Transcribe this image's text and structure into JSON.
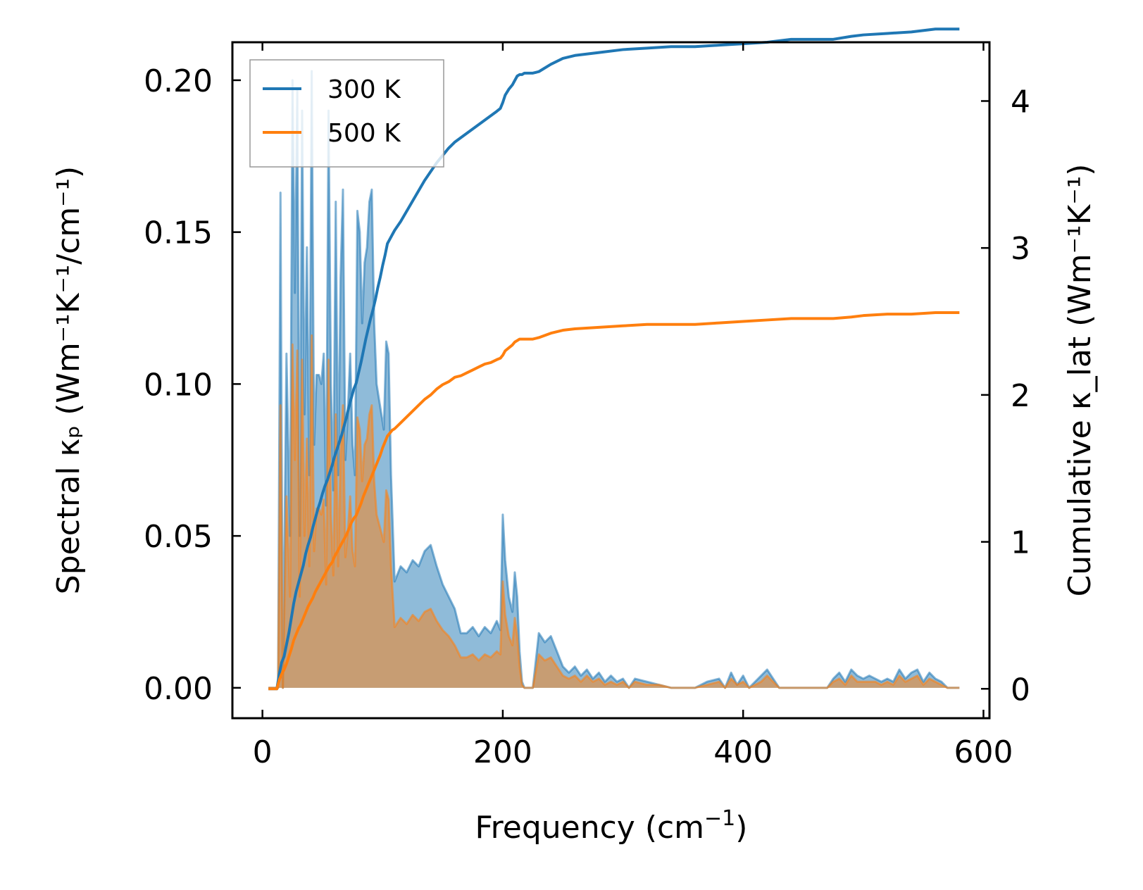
{
  "chart_data": {
    "type": "line",
    "xlabel_main": "Frequency (cm",
    "xlabel_sup": "−1",
    "xlabel_close": ")",
    "xlim": [
      -25,
      605
    ],
    "xticks": [
      0,
      200,
      400,
      600
    ],
    "xtick_labels": [
      "0",
      "200",
      "400",
      "600"
    ],
    "left_axis": {
      "label": "Spectral κₚ (Wm⁻¹K⁻¹/cm⁻¹)",
      "ylim": [
        -0.01,
        0.2125
      ],
      "ticks": [
        0.0,
        0.05,
        0.1,
        0.15,
        0.2
      ],
      "tick_labels": [
        "0.00",
        "0.05",
        "0.10",
        "0.15",
        "0.20"
      ]
    },
    "right_axis": {
      "label": "Cumulative κ_lat (Wm⁻¹K⁻¹)",
      "ylim": [
        -0.2,
        4.4
      ],
      "ticks": [
        0,
        1,
        2,
        3,
        4
      ],
      "tick_labels": [
        "0",
        "1",
        "2",
        "3",
        "4"
      ]
    },
    "series": [
      {
        "name": "300 K",
        "color": "#1f77b4",
        "spectral_x": [
          5,
          10,
          13,
          15,
          17,
          20,
          23,
          25,
          27,
          29,
          31,
          33,
          35,
          37,
          39,
          41,
          43,
          45,
          47,
          49,
          51,
          53,
          55,
          57,
          59,
          61,
          63,
          65,
          67,
          69,
          71,
          73,
          75,
          77,
          79,
          81,
          83,
          85,
          87,
          89,
          91,
          93,
          95,
          97,
          99,
          101,
          103,
          105,
          107,
          110,
          115,
          120,
          125,
          130,
          135,
          140,
          145,
          150,
          155,
          160,
          165,
          170,
          175,
          180,
          185,
          190,
          195,
          198,
          200,
          202,
          205,
          208,
          210,
          212,
          214,
          216,
          218,
          220,
          225,
          230,
          235,
          240,
          245,
          250,
          255,
          260,
          265,
          270,
          275,
          280,
          285,
          290,
          295,
          300,
          305,
          310,
          320,
          330,
          340,
          350,
          360,
          370,
          380,
          385,
          390,
          395,
          400,
          405,
          410,
          415,
          420,
          425,
          430,
          440,
          450,
          460,
          470,
          475,
          480,
          485,
          490,
          495,
          500,
          505,
          510,
          515,
          520,
          525,
          530,
          535,
          540,
          545,
          550,
          555,
          560,
          565,
          570,
          575,
          580
        ],
        "spectral_y": [
          0.0,
          0.0,
          0.0,
          0.163,
          0.0,
          0.11,
          0.05,
          0.2,
          0.13,
          0.197,
          0.05,
          0.19,
          0.09,
          0.145,
          0.07,
          0.203,
          0.08,
          0.103,
          0.103,
          0.1,
          0.11,
          0.06,
          0.19,
          0.1,
          0.065,
          0.16,
          0.07,
          0.135,
          0.164,
          0.075,
          0.09,
          0.11,
          0.08,
          0.07,
          0.157,
          0.15,
          0.12,
          0.14,
          0.145,
          0.16,
          0.164,
          0.12,
          0.1,
          0.095,
          0.09,
          0.085,
          0.114,
          0.11,
          0.07,
          0.035,
          0.04,
          0.038,
          0.042,
          0.04,
          0.045,
          0.047,
          0.04,
          0.034,
          0.03,
          0.026,
          0.018,
          0.018,
          0.02,
          0.017,
          0.02,
          0.018,
          0.022,
          0.019,
          0.057,
          0.042,
          0.03,
          0.025,
          0.038,
          0.03,
          0.012,
          0.002,
          0.0,
          0.0,
          0.0,
          0.018,
          0.015,
          0.017,
          0.012,
          0.007,
          0.005,
          0.007,
          0.004,
          0.006,
          0.003,
          0.005,
          0.002,
          0.004,
          0.002,
          0.003,
          0.0,
          0.003,
          0.002,
          0.001,
          0.0,
          0.0,
          0.0,
          0.002,
          0.003,
          0.0,
          0.005,
          0.001,
          0.004,
          0.0,
          0.002,
          0.004,
          0.006,
          0.003,
          0.0,
          0.0,
          0.0,
          0.0,
          0.0,
          0.003,
          0.005,
          0.002,
          0.006,
          0.004,
          0.003,
          0.004,
          0.003,
          0.002,
          0.003,
          0.002,
          0.006,
          0.003,
          0.005,
          0.006,
          0.002,
          0.005,
          0.003,
          0.002,
          0.0,
          0.0,
          0.0
        ],
        "cumulative_x": [
          5,
          12,
          14,
          16,
          18,
          20,
          22,
          24,
          26,
          28,
          30,
          32,
          34,
          36,
          38,
          40,
          42,
          44,
          46,
          48,
          50,
          52,
          54,
          56,
          58,
          60,
          62,
          64,
          66,
          68,
          70,
          72,
          74,
          76,
          78,
          80,
          82,
          84,
          86,
          88,
          90,
          92,
          94,
          96,
          98,
          100,
          102,
          104,
          106,
          108,
          110,
          115,
          120,
          125,
          130,
          135,
          140,
          145,
          150,
          155,
          160,
          165,
          170,
          175,
          180,
          185,
          190,
          195,
          198,
          200,
          202,
          205,
          208,
          210,
          212,
          214,
          216,
          218,
          220,
          225,
          230,
          240,
          250,
          260,
          280,
          300,
          320,
          340,
          360,
          380,
          400,
          420,
          440,
          460,
          475,
          490,
          500,
          520,
          540,
          560,
          580
        ],
        "cumulative_y": [
          0.0,
          0.0,
          0.1,
          0.18,
          0.22,
          0.3,
          0.38,
          0.48,
          0.58,
          0.66,
          0.72,
          0.78,
          0.84,
          0.92,
          0.98,
          1.03,
          1.1,
          1.16,
          1.22,
          1.27,
          1.33,
          1.38,
          1.42,
          1.47,
          1.52,
          1.58,
          1.63,
          1.68,
          1.73,
          1.79,
          1.85,
          1.92,
          1.98,
          2.04,
          2.08,
          2.15,
          2.22,
          2.3,
          2.38,
          2.45,
          2.52,
          2.58,
          2.65,
          2.73,
          2.8,
          2.88,
          2.95,
          3.03,
          3.06,
          3.09,
          3.12,
          3.18,
          3.25,
          3.32,
          3.39,
          3.46,
          3.52,
          3.58,
          3.63,
          3.68,
          3.72,
          3.75,
          3.78,
          3.81,
          3.84,
          3.87,
          3.9,
          3.93,
          3.95,
          3.99,
          4.04,
          4.08,
          4.11,
          4.14,
          4.17,
          4.18,
          4.18,
          4.19,
          4.19,
          4.19,
          4.2,
          4.25,
          4.29,
          4.31,
          4.33,
          4.35,
          4.36,
          4.37,
          4.37,
          4.38,
          4.39,
          4.4,
          4.42,
          4.42,
          4.42,
          4.44,
          4.45,
          4.46,
          4.47,
          4.49,
          4.49
        ]
      },
      {
        "name": "500 K",
        "color": "#ff7f0e",
        "spectral_x": [
          5,
          10,
          13,
          15,
          17,
          20,
          23,
          25,
          27,
          29,
          31,
          33,
          35,
          37,
          39,
          41,
          43,
          45,
          47,
          49,
          51,
          53,
          55,
          57,
          59,
          61,
          63,
          65,
          67,
          69,
          71,
          73,
          75,
          77,
          79,
          81,
          83,
          85,
          87,
          89,
          91,
          93,
          95,
          97,
          99,
          101,
          103,
          105,
          107,
          110,
          115,
          120,
          125,
          130,
          135,
          140,
          145,
          150,
          155,
          160,
          165,
          170,
          175,
          180,
          185,
          190,
          195,
          198,
          200,
          202,
          205,
          208,
          210,
          212,
          214,
          216,
          218,
          220,
          225,
          230,
          235,
          240,
          245,
          250,
          255,
          260,
          265,
          270,
          275,
          280,
          285,
          290,
          295,
          300,
          305,
          310,
          320,
          330,
          340,
          350,
          360,
          370,
          380,
          385,
          390,
          395,
          400,
          405,
          410,
          415,
          420,
          425,
          430,
          440,
          450,
          460,
          470,
          475,
          480,
          485,
          490,
          495,
          500,
          505,
          510,
          515,
          520,
          525,
          530,
          535,
          540,
          545,
          550,
          555,
          560,
          565,
          570,
          575,
          580
        ],
        "spectral_y": [
          0.0,
          0.0,
          0.0,
          0.093,
          0.0,
          0.063,
          0.03,
          0.113,
          0.075,
          0.111,
          0.03,
          0.108,
          0.05,
          0.082,
          0.04,
          0.116,
          0.045,
          0.059,
          0.059,
          0.057,
          0.062,
          0.034,
          0.108,
          0.057,
          0.037,
          0.09,
          0.04,
          0.077,
          0.093,
          0.043,
          0.051,
          0.063,
          0.045,
          0.04,
          0.089,
          0.085,
          0.068,
          0.08,
          0.082,
          0.09,
          0.093,
          0.068,
          0.057,
          0.054,
          0.051,
          0.048,
          0.065,
          0.062,
          0.04,
          0.02,
          0.023,
          0.021,
          0.024,
          0.022,
          0.025,
          0.026,
          0.022,
          0.019,
          0.017,
          0.014,
          0.01,
          0.01,
          0.011,
          0.009,
          0.011,
          0.01,
          0.012,
          0.011,
          0.035,
          0.024,
          0.017,
          0.014,
          0.023,
          0.017,
          0.007,
          0.001,
          0.0,
          0.0,
          0.0,
          0.011,
          0.009,
          0.01,
          0.007,
          0.004,
          0.003,
          0.004,
          0.002,
          0.004,
          0.002,
          0.003,
          0.001,
          0.002,
          0.001,
          0.002,
          0.0,
          0.002,
          0.001,
          0.001,
          0.0,
          0.0,
          0.0,
          0.001,
          0.002,
          0.0,
          0.003,
          0.001,
          0.002,
          0.0,
          0.001,
          0.002,
          0.004,
          0.002,
          0.0,
          0.0,
          0.0,
          0.0,
          0.0,
          0.002,
          0.003,
          0.001,
          0.004,
          0.002,
          0.002,
          0.002,
          0.002,
          0.001,
          0.002,
          0.001,
          0.004,
          0.002,
          0.003,
          0.004,
          0.001,
          0.003,
          0.002,
          0.001,
          0.0,
          0.0,
          0.0
        ],
        "cumulative_x": [
          5,
          12,
          14,
          16,
          18,
          20,
          22,
          24,
          26,
          28,
          30,
          32,
          34,
          36,
          38,
          40,
          42,
          44,
          46,
          48,
          50,
          52,
          54,
          56,
          58,
          60,
          62,
          64,
          66,
          68,
          70,
          72,
          74,
          76,
          78,
          80,
          82,
          84,
          86,
          88,
          90,
          92,
          94,
          96,
          98,
          100,
          102,
          104,
          106,
          108,
          110,
          115,
          120,
          125,
          130,
          135,
          140,
          145,
          150,
          155,
          160,
          165,
          170,
          175,
          180,
          185,
          190,
          195,
          198,
          200,
          202,
          205,
          208,
          210,
          212,
          214,
          216,
          218,
          220,
          225,
          230,
          240,
          250,
          260,
          280,
          300,
          320,
          340,
          360,
          380,
          400,
          420,
          440,
          460,
          475,
          490,
          500,
          520,
          540,
          560,
          580
        ],
        "cumulative_y": [
          0.0,
          0.0,
          0.06,
          0.1,
          0.13,
          0.17,
          0.22,
          0.27,
          0.33,
          0.37,
          0.41,
          0.44,
          0.48,
          0.52,
          0.56,
          0.59,
          0.62,
          0.66,
          0.69,
          0.72,
          0.75,
          0.78,
          0.81,
          0.84,
          0.86,
          0.9,
          0.93,
          0.96,
          0.99,
          1.02,
          1.05,
          1.09,
          1.13,
          1.16,
          1.18,
          1.22,
          1.26,
          1.31,
          1.35,
          1.39,
          1.43,
          1.47,
          1.51,
          1.55,
          1.59,
          1.64,
          1.68,
          1.72,
          1.74,
          1.76,
          1.77,
          1.81,
          1.85,
          1.89,
          1.93,
          1.97,
          2.0,
          2.04,
          2.07,
          2.09,
          2.12,
          2.13,
          2.15,
          2.17,
          2.19,
          2.21,
          2.22,
          2.24,
          2.25,
          2.27,
          2.3,
          2.32,
          2.34,
          2.36,
          2.37,
          2.38,
          2.38,
          2.38,
          2.38,
          2.38,
          2.39,
          2.42,
          2.44,
          2.45,
          2.46,
          2.47,
          2.48,
          2.48,
          2.48,
          2.49,
          2.5,
          2.51,
          2.52,
          2.52,
          2.52,
          2.53,
          2.54,
          2.55,
          2.55,
          2.56,
          2.56
        ]
      }
    ],
    "legend": {
      "position": "top-left",
      "entries": [
        "300 K",
        "500 K"
      ]
    }
  }
}
